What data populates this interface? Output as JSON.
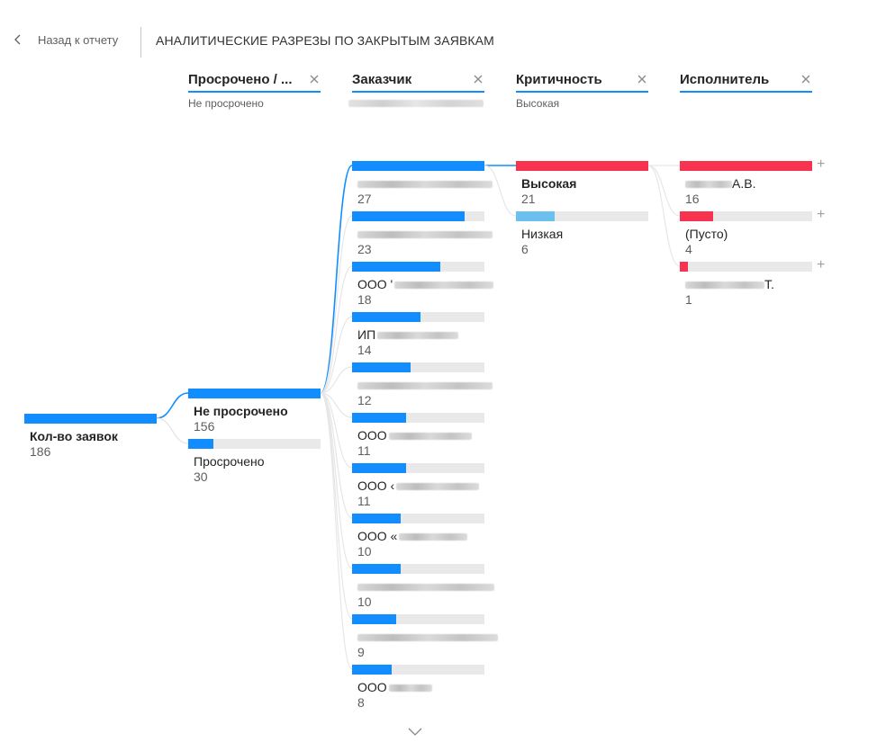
{
  "header": {
    "back_label": "Назад к отчету",
    "title": "АНАЛИТИЧЕСКИЕ РАЗРЕЗЫ ПО ЗАКРЫТЫМ ЗАЯВКАМ"
  },
  "levels": [
    {
      "title": "Просрочено / ...",
      "selected": "Не просрочено"
    },
    {
      "title": "Заказчик",
      "selected": ""
    },
    {
      "title": "Критичность",
      "selected": "Высокая"
    },
    {
      "title": "Исполнитель",
      "selected": ""
    }
  ],
  "colors": {
    "accent": "#118dff",
    "high": "#f7334f",
    "low": "#6cc0ef",
    "track": "#e9e9e9"
  },
  "root": {
    "label": "Кол-во заявок",
    "value": "186"
  },
  "overdue": [
    {
      "label": "Не просрочено",
      "value": "156",
      "fraction": 1.0
    },
    {
      "label": "Просрочено",
      "value": "30",
      "fraction": 0.19
    }
  ],
  "customers": [
    {
      "label": "",
      "value": "27",
      "fraction": 1.0
    },
    {
      "label": "",
      "value": "23",
      "fraction": 0.85
    },
    {
      "label": "ООО '",
      "value": "18",
      "fraction": 0.67
    },
    {
      "label": "ИП",
      "value": "14",
      "fraction": 0.52
    },
    {
      "label": "",
      "value": "12",
      "fraction": 0.44
    },
    {
      "label": "ООО",
      "value": "11",
      "fraction": 0.41
    },
    {
      "label": "ООО ‹",
      "value": "11",
      "fraction": 0.41
    },
    {
      "label": "ООО «",
      "value": "10",
      "fraction": 0.37
    },
    {
      "label": "",
      "value": "10",
      "fraction": 0.37
    },
    {
      "label": "",
      "value": "9",
      "fraction": 0.33
    },
    {
      "label": "ООО",
      "value": "8",
      "fraction": 0.3
    }
  ],
  "criticality": [
    {
      "label": "Высокая",
      "value": "21",
      "fraction": 1.0
    },
    {
      "label": "Низкая",
      "value": "6",
      "fraction": 0.29
    }
  ],
  "executors": [
    {
      "label": "А.В.",
      "value": "16",
      "fraction": 1.0
    },
    {
      "label": "(Пусто)",
      "value": "4",
      "fraction": 0.25
    },
    {
      "label": "Т.",
      "value": "1",
      "fraction": 0.06
    }
  ],
  "icons": {
    "back": "chevron-left-icon",
    "close": "close-icon",
    "expand": "plus-icon",
    "more": "chevron-down-icon"
  }
}
